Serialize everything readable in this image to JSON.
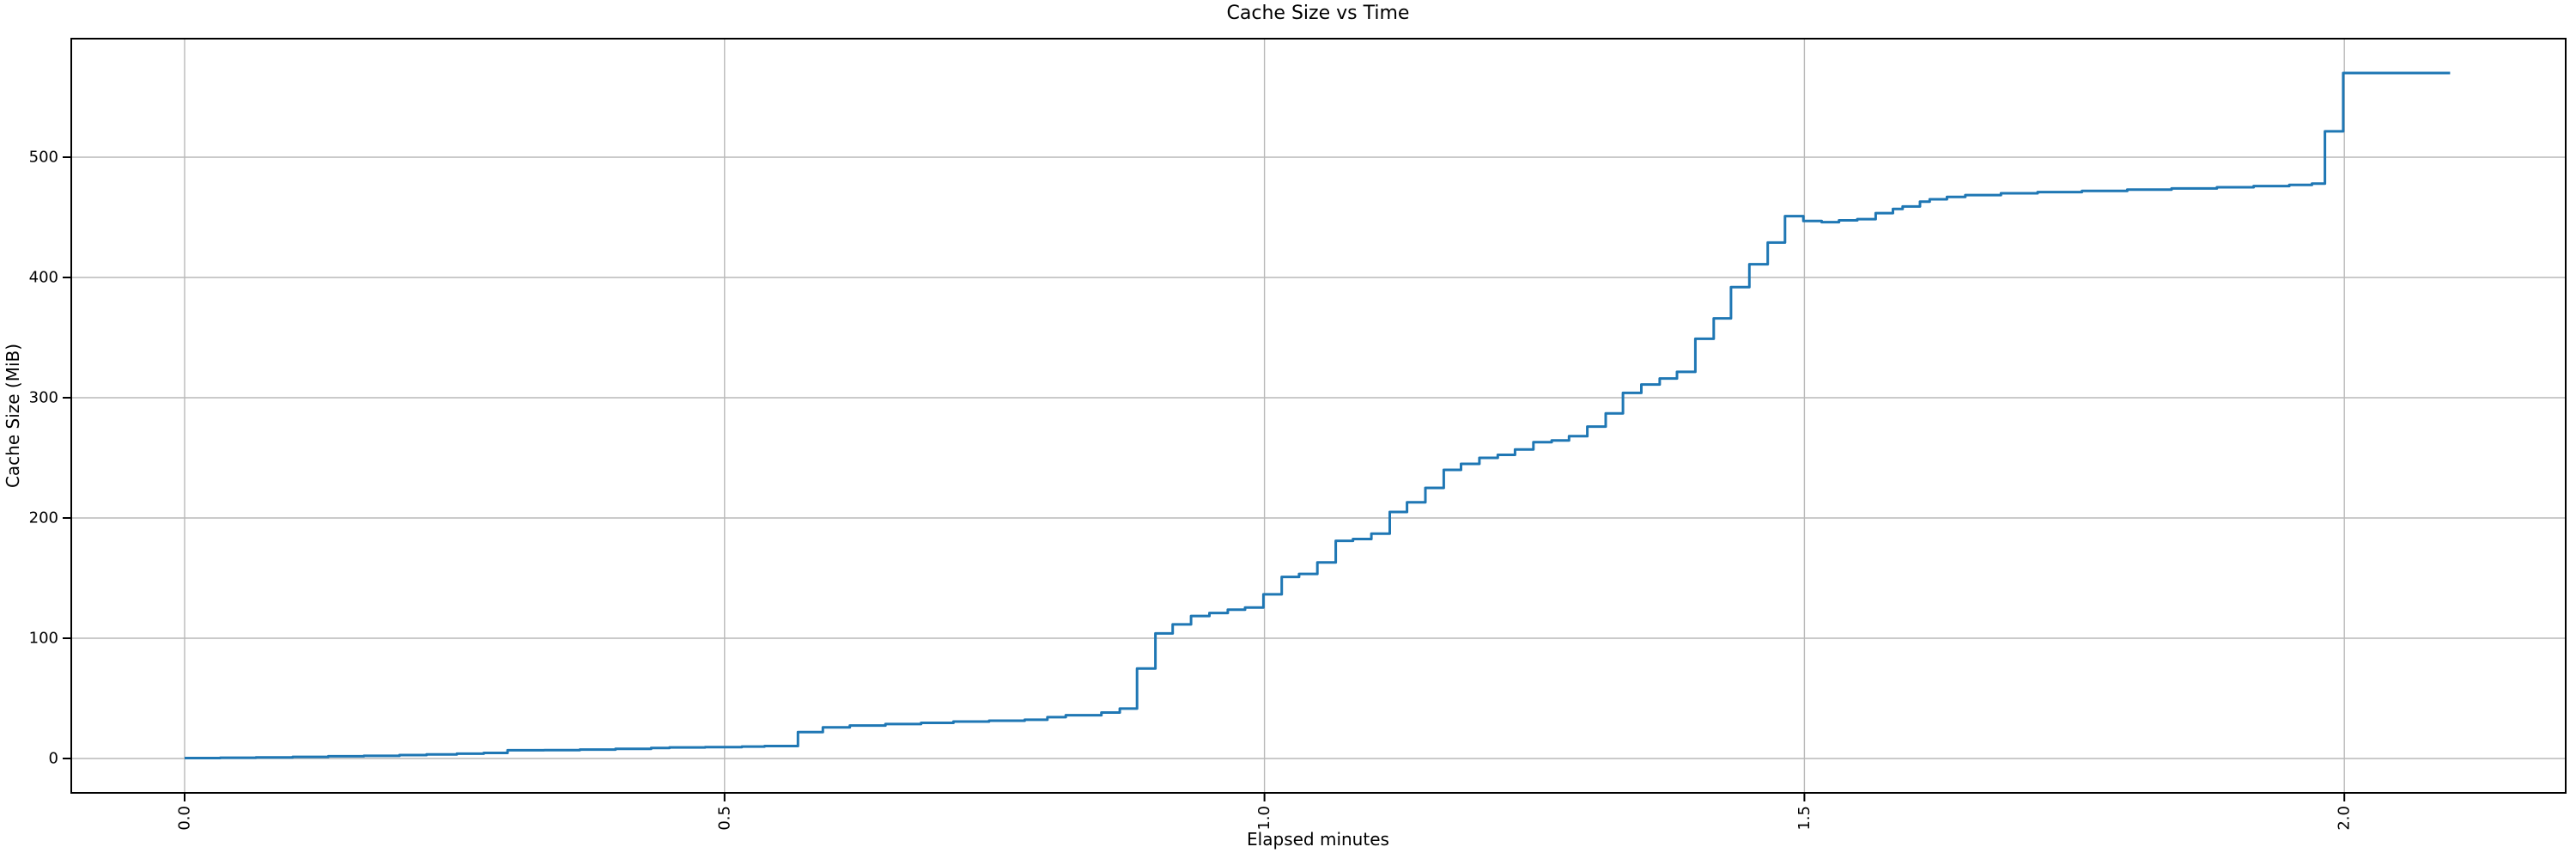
{
  "chart_data": {
    "type": "line",
    "drawstyle": "steps-post",
    "title": "Cache Size vs Time",
    "xlabel": "Elapsed minutes",
    "ylabel": "Cache Size (MiB)",
    "grid": true,
    "legend": "none",
    "xlim": [
      -0.105,
      2.205
    ],
    "ylim": [
      -28.6,
      598.6
    ],
    "x_tick_rotation_deg": 90,
    "xticks": [
      {
        "value": 0.0,
        "label": "0.0"
      },
      {
        "value": 0.5,
        "label": "0.5"
      },
      {
        "value": 1.0,
        "label": "1.0"
      },
      {
        "value": 1.5,
        "label": "1.5"
      },
      {
        "value": 2.0,
        "label": "2.0"
      }
    ],
    "yticks": [
      {
        "value": 0,
        "label": "0"
      },
      {
        "value": 100,
        "label": "100"
      },
      {
        "value": 200,
        "label": "200"
      },
      {
        "value": 300,
        "label": "300"
      },
      {
        "value": 400,
        "label": "400"
      },
      {
        "value": 500,
        "label": "500"
      }
    ],
    "colors": {
      "line": "#1f77b4",
      "grid": "#b9b9b9",
      "axis": "#000000",
      "background": "#ffffff"
    },
    "series": [
      {
        "name": "cache-size",
        "color": "#1f77b4",
        "points": [
          [
            0.0,
            0.3
          ],
          [
            0.033,
            0.6
          ],
          [
            0.066,
            0.9
          ],
          [
            0.1,
            1.3
          ],
          [
            0.133,
            1.8
          ],
          [
            0.166,
            2.2
          ],
          [
            0.199,
            2.8
          ],
          [
            0.224,
            3.4
          ],
          [
            0.252,
            4.0
          ],
          [
            0.277,
            4.6
          ],
          [
            0.299,
            6.8
          ],
          [
            0.333,
            7.0
          ],
          [
            0.366,
            7.4
          ],
          [
            0.399,
            8.0
          ],
          [
            0.432,
            8.7
          ],
          [
            0.449,
            9.2
          ],
          [
            0.482,
            9.5
          ],
          [
            0.516,
            9.9
          ],
          [
            0.537,
            10.3
          ],
          [
            0.568,
            21.9
          ],
          [
            0.591,
            25.8
          ],
          [
            0.616,
            27.4
          ],
          [
            0.649,
            28.6
          ],
          [
            0.682,
            29.6
          ],
          [
            0.712,
            30.7
          ],
          [
            0.745,
            31.4
          ],
          [
            0.778,
            32.2
          ],
          [
            0.799,
            34.3
          ],
          [
            0.816,
            36.0
          ],
          [
            0.849,
            38.2
          ],
          [
            0.866,
            41.5
          ],
          [
            0.882,
            74.8
          ],
          [
            0.899,
            104.0
          ],
          [
            0.915,
            111.5
          ],
          [
            0.932,
            118.5
          ],
          [
            0.949,
            121.0
          ],
          [
            0.966,
            123.8
          ],
          [
            0.982,
            125.5
          ],
          [
            0.999,
            136.5
          ],
          [
            1.016,
            151.0
          ],
          [
            1.032,
            153.5
          ],
          [
            1.049,
            163.0
          ],
          [
            1.066,
            181.0
          ],
          [
            1.082,
            182.5
          ],
          [
            1.099,
            187.0
          ],
          [
            1.116,
            205.0
          ],
          [
            1.132,
            213.0
          ],
          [
            1.149,
            225.0
          ],
          [
            1.166,
            240.0
          ],
          [
            1.182,
            245.0
          ],
          [
            1.199,
            250.0
          ],
          [
            1.216,
            252.5
          ],
          [
            1.232,
            257.0
          ],
          [
            1.249,
            263.0
          ],
          [
            1.266,
            264.5
          ],
          [
            1.282,
            268.0
          ],
          [
            1.299,
            276.0
          ],
          [
            1.316,
            287.0
          ],
          [
            1.332,
            304.0
          ],
          [
            1.349,
            311.0
          ],
          [
            1.366,
            316.0
          ],
          [
            1.382,
            321.5
          ],
          [
            1.399,
            349.0
          ],
          [
            1.416,
            366.0
          ],
          [
            1.432,
            392.0
          ],
          [
            1.449,
            411.0
          ],
          [
            1.466,
            429.0
          ],
          [
            1.482,
            451.0
          ],
          [
            1.499,
            447.0
          ],
          [
            1.516,
            446.0
          ],
          [
            1.532,
            447.5
          ],
          [
            1.549,
            448.5
          ],
          [
            1.566,
            453.5
          ],
          [
            1.582,
            457.0
          ],
          [
            1.591,
            459.0
          ],
          [
            1.607,
            463.0
          ],
          [
            1.616,
            465.0
          ],
          [
            1.632,
            467.0
          ],
          [
            1.649,
            468.5
          ],
          [
            1.682,
            470.0
          ],
          [
            1.716,
            471.0
          ],
          [
            1.757,
            472.0
          ],
          [
            1.799,
            473.0
          ],
          [
            1.84,
            474.0
          ],
          [
            1.882,
            475.0
          ],
          [
            1.916,
            476.0
          ],
          [
            1.949,
            477.0
          ],
          [
            1.97,
            478.0
          ],
          [
            1.982,
            521.5
          ],
          [
            1.999,
            570.0
          ],
          [
            2.098,
            570.0
          ]
        ]
      }
    ]
  }
}
